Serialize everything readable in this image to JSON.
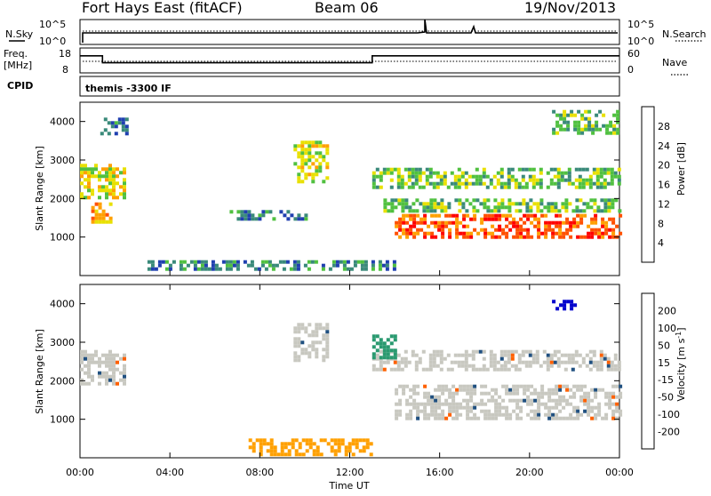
{
  "header": {
    "station": "Fort Hays East (fitACF)",
    "beam": "Beam 06",
    "date": "19/Nov/2013"
  },
  "noise_panel": {
    "left_label": "N.Sky",
    "right_label": "N.Search",
    "left_ticks": [
      "10^5",
      "10^0"
    ],
    "right_ticks": [
      "10^5",
      "10^0"
    ]
  },
  "freq_panel": {
    "left_label_1": "Freq.",
    "left_label_2": "[MHz]",
    "right_label": "Nave",
    "left_ticks": [
      "18",
      "8"
    ],
    "right_ticks": [
      "60",
      "0"
    ]
  },
  "cpid_panel": {
    "label": "CPID",
    "text": "themis -3300 IF"
  },
  "power_panel": {
    "ylabel": "Slant Range [km]",
    "yticks": [
      "4000",
      "3000",
      "2000",
      "1000"
    ],
    "colorbar_label": "Power [dB]",
    "colorbar_ticks": [
      "28",
      "24",
      "20",
      "16",
      "12",
      "8",
      "4"
    ],
    "colorbar_colors": [
      "#0000ff",
      "#2040b0",
      "#3a8a7a",
      "#50c040",
      "#e8e000",
      "#ffa000",
      "#ff5000",
      "#ff0000"
    ]
  },
  "velocity_panel": {
    "ylabel": "Slant Range [km]",
    "yticks": [
      "4000",
      "3000",
      "2000",
      "1000"
    ],
    "colorbar_label": "Velocity [m s^-1]",
    "colorbar_ticks": [
      "200",
      "100",
      "50",
      "15",
      "-15",
      "-50",
      "-100",
      "-200"
    ],
    "colorbar_colors": [
      "#0000cc",
      "#205080",
      "#2a9a70",
      "#50cc40",
      "#c8c8c0",
      "#ffa000",
      "#ff6000",
      "#ff0000"
    ]
  },
  "xaxis": {
    "ticks": [
      "00:00",
      "04:00",
      "08:00",
      "12:00",
      "16:00",
      "20:00",
      "00:00"
    ],
    "label": "Time UT"
  },
  "chart_data": {
    "type": "heatmap",
    "x_range_hours": [
      0,
      24
    ],
    "y_range_km": [
      0,
      4500
    ],
    "grid": false,
    "freq_trace_mhz": [
      {
        "t": 0,
        "f": 15
      },
      {
        "t": 1,
        "f": 15
      },
      {
        "t": 1,
        "f": 12
      },
      {
        "t": 13,
        "f": 12
      },
      {
        "t": 13,
        "f": 15
      },
      {
        "t": 24,
        "f": 15
      }
    ],
    "power_regions": [
      {
        "t0": 0.0,
        "t1": 2.0,
        "r0": 2000,
        "r1": 2900,
        "db": 14
      },
      {
        "t0": 0.5,
        "t1": 1.3,
        "r0": 1400,
        "r1": 1900,
        "db": 18
      },
      {
        "t0": 0.9,
        "t1": 2.1,
        "r0": 3700,
        "r1": 4100,
        "db": 6
      },
      {
        "t0": 9.5,
        "t1": 11.0,
        "r0": 2400,
        "r1": 3500,
        "db": 14
      },
      {
        "t0": 6.5,
        "t1": 10.0,
        "r0": 1500,
        "r1": 1700,
        "db": 6
      },
      {
        "t0": 13.0,
        "t1": 24.0,
        "r0": 2300,
        "r1": 2800,
        "db": 12
      },
      {
        "t0": 13.5,
        "t1": 24.0,
        "r0": 1700,
        "r1": 2000,
        "db": 10
      },
      {
        "t0": 14.0,
        "t1": 24.0,
        "r0": 1000,
        "r1": 1600,
        "db": 24
      },
      {
        "t0": 3.0,
        "t1": 14.0,
        "r0": 200,
        "r1": 400,
        "db": 8
      },
      {
        "t0": 21.0,
        "t1": 24.0,
        "r0": 3700,
        "r1": 4300,
        "db": 10
      }
    ],
    "velocity_regions": [
      {
        "t0": 0.0,
        "t1": 2.0,
        "r0": 1900,
        "r1": 2800,
        "v": 0
      },
      {
        "t0": 9.5,
        "t1": 11.0,
        "r0": 2500,
        "r1": 3500,
        "v": 0
      },
      {
        "t0": 13.0,
        "t1": 24.0,
        "r0": 2300,
        "r1": 2800,
        "v": 0
      },
      {
        "t0": 14.0,
        "t1": 24.0,
        "r0": 1000,
        "r1": 1900,
        "v": 0
      },
      {
        "t0": 13.0,
        "t1": 14.0,
        "r0": 2600,
        "r1": 3200,
        "v": 40
      },
      {
        "t0": 7.5,
        "t1": 13.0,
        "r0": 100,
        "r1": 500,
        "v": -40
      },
      {
        "t0": 21.0,
        "t1": 22.0,
        "r0": 3900,
        "r1": 4100,
        "v": 200
      }
    ]
  }
}
